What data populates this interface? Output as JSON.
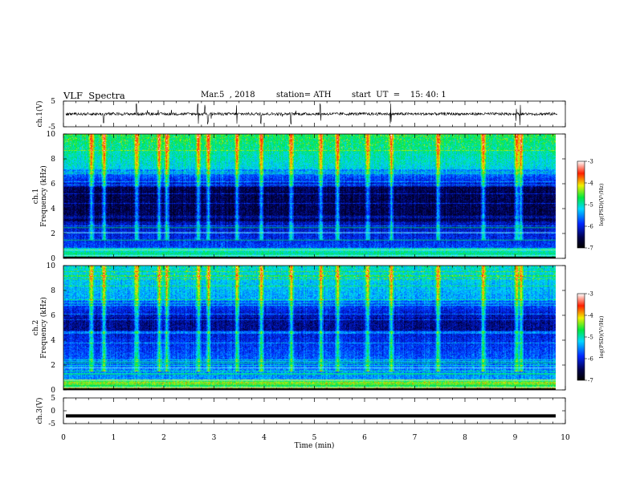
{
  "header": {
    "title": "VLF  Spectra",
    "date": "Mar.5  , 2018",
    "station": "station= ATH",
    "start": "start  UT  =    15: 40: 1"
  },
  "chart_data": [
    {
      "type": "line",
      "panel": "ch1-waveform",
      "ylabel": "ch.1(V)",
      "ylim": [
        -5,
        5
      ],
      "yticks": [
        "5",
        "-5"
      ],
      "xlim": [
        0,
        10
      ],
      "baseline": 0,
      "spike_times": [
        0.8,
        1.45,
        2.68,
        2.82,
        2.88,
        3.45,
        3.93,
        4.53,
        5.12,
        6.52,
        9.02,
        9.1
      ]
    },
    {
      "type": "heatmap",
      "panel": "ch1-spectrogram",
      "ylabel": "ch.1\nFrequency (kHz)",
      "ylim": [
        0,
        10
      ],
      "yticks": [
        "0",
        "2",
        "4",
        "6",
        "8",
        "10"
      ],
      "xlim": [
        0,
        9.8
      ],
      "colorbar": {
        "label": "log(PSD)(V²/Hz)",
        "range": [
          -7,
          -3
        ],
        "ticks": [
          "-3",
          "-4",
          "-5",
          "-6",
          "-7"
        ]
      },
      "vertical_streak_times": [
        0.55,
        0.8,
        1.45,
        1.9,
        2.05,
        2.68,
        2.88,
        3.45,
        3.93,
        4.53,
        5.12,
        5.45,
        6.05,
        6.52,
        7.45,
        8.35,
        9.02,
        9.1
      ]
    },
    {
      "type": "heatmap",
      "panel": "ch2-spectrogram",
      "ylabel": "ch.2\nFrequency (kHz)",
      "ylim": [
        0,
        10
      ],
      "yticks": [
        "0",
        "2",
        "4",
        "6",
        "8",
        "10"
      ],
      "xlim": [
        0,
        9.8
      ],
      "colorbar": {
        "label": "log(PSD)(V²/Hz)",
        "range": [
          -7,
          -3
        ],
        "ticks": [
          "-3",
          "-4",
          "-5",
          "-6",
          "-7"
        ]
      },
      "vertical_streak_times": [
        0.55,
        0.8,
        1.45,
        1.9,
        2.05,
        2.68,
        2.88,
        3.45,
        3.93,
        4.53,
        5.12,
        5.45,
        6.05,
        6.52,
        7.45,
        8.35,
        9.02,
        9.1
      ]
    },
    {
      "type": "line",
      "panel": "ch3-waveform",
      "ylabel": "ch.3(V)",
      "ylim": [
        -5,
        5
      ],
      "yticks": [
        "5",
        "0",
        "-5"
      ],
      "xlim": [
        0,
        10
      ],
      "baseline": -2
    }
  ],
  "xaxis": {
    "label": "Time  (min)",
    "ticks": [
      "0",
      "1",
      "2",
      "3",
      "4",
      "5",
      "6",
      "7",
      "8",
      "9",
      "10"
    ]
  }
}
